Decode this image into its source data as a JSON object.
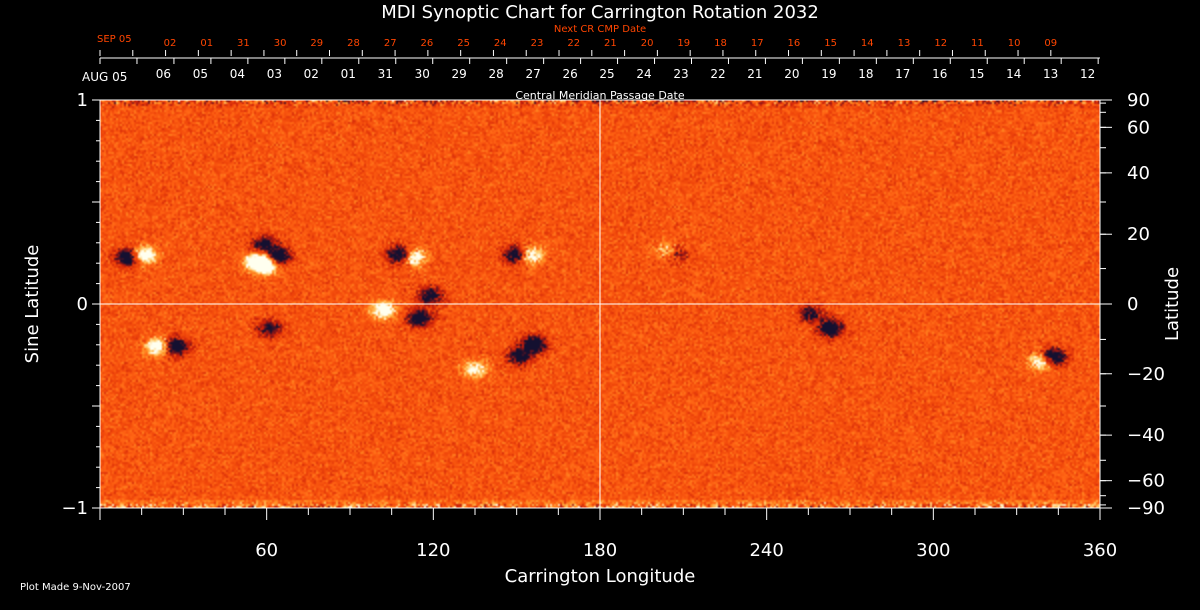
{
  "chart_data": {
    "type": "heatmap",
    "title": "MDI Synoptic Chart for Carrington Rotation 2032",
    "xlabel": "Carrington Longitude",
    "ylabel_left": "Sine Latitude",
    "ylabel_right": "Latitude",
    "xlim": [
      0,
      360
    ],
    "ylim": [
      -1,
      1
    ],
    "x_ticks": [
      60,
      120,
      180,
      240,
      300,
      360
    ],
    "x_tick_labels": [
      "60",
      "120",
      "180",
      "240",
      "300",
      "360"
    ],
    "y_ticks_left": [
      1,
      0,
      -1
    ],
    "y_tick_labels_left": [
      "1",
      "0",
      "−1"
    ],
    "y_ticks_right_deg": [
      90,
      60,
      40,
      20,
      0,
      -20,
      -40,
      -60,
      -90
    ],
    "y_tick_labels_right": [
      "90",
      "60",
      "40",
      "20",
      "0",
      "−20",
      "−40",
      "−60",
      "−90"
    ],
    "cmp_axis_label": "Central Meridian Passage Date",
    "cmp_start_label": "AUG 05",
    "cmp_dates": [
      "06",
      "05",
      "04",
      "03",
      "02",
      "01",
      "31",
      "30",
      "29",
      "28",
      "27",
      "26",
      "25",
      "24",
      "23",
      "22",
      "21",
      "20",
      "19",
      "18",
      "17",
      "16",
      "15",
      "14",
      "13",
      "12"
    ],
    "next_cr_label": "Next CR CMP Date",
    "next_cr_start_label": "SEP 05",
    "next_cr_dates": [
      "02",
      "01",
      "31",
      "30",
      "29",
      "28",
      "27",
      "26",
      "25",
      "24",
      "23",
      "22",
      "21",
      "20",
      "19",
      "18",
      "17",
      "16",
      "15",
      "14",
      "13",
      "12",
      "11",
      "10",
      "09"
    ],
    "grid": "crosshair at 180 longitude and 0 latitude",
    "colors": {
      "background_field": "#ff5a10",
      "positive": "#ffffff",
      "negative": "#141030",
      "axes": "#ffffff",
      "cr_labels": "#ff4500"
    },
    "regions": [
      {
        "lon": 10,
        "sinlat": 0.23,
        "polarity": "negative",
        "strength": 0.9
      },
      {
        "lon": 16,
        "sinlat": 0.24,
        "polarity": "positive",
        "strength": 0.9
      },
      {
        "lon": 57,
        "sinlat": 0.21,
        "polarity": "positive",
        "strength": 1.0
      },
      {
        "lon": 60,
        "sinlat": 0.19,
        "polarity": "positive",
        "strength": 1.0
      },
      {
        "lon": 64,
        "sinlat": 0.23,
        "polarity": "negative",
        "strength": 1.0
      },
      {
        "lon": 59,
        "sinlat": 0.29,
        "polarity": "negative",
        "strength": 0.7
      },
      {
        "lon": 108,
        "sinlat": 0.24,
        "polarity": "negative",
        "strength": 0.9
      },
      {
        "lon": 113,
        "sinlat": 0.23,
        "polarity": "positive",
        "strength": 0.8
      },
      {
        "lon": 102,
        "sinlat": -0.03,
        "polarity": "positive",
        "strength": 0.8
      },
      {
        "lon": 115,
        "sinlat": -0.07,
        "polarity": "negative",
        "strength": 0.8
      },
      {
        "lon": 119,
        "sinlat": 0.04,
        "polarity": "negative",
        "strength": 0.7
      },
      {
        "lon": 150,
        "sinlat": 0.24,
        "polarity": "negative",
        "strength": 0.9
      },
      {
        "lon": 155,
        "sinlat": 0.24,
        "polarity": "positive",
        "strength": 0.8
      },
      {
        "lon": 156,
        "sinlat": -0.2,
        "polarity": "negative",
        "strength": 0.9
      },
      {
        "lon": 151,
        "sinlat": -0.26,
        "polarity": "negative",
        "strength": 0.7
      },
      {
        "lon": 135,
        "sinlat": -0.32,
        "polarity": "positive",
        "strength": 0.6
      },
      {
        "lon": 21,
        "sinlat": -0.21,
        "polarity": "positive",
        "strength": 0.9
      },
      {
        "lon": 27,
        "sinlat": -0.21,
        "polarity": "negative",
        "strength": 1.0
      },
      {
        "lon": 61,
        "sinlat": -0.12,
        "polarity": "negative",
        "strength": 0.6
      },
      {
        "lon": 207,
        "sinlat": 0.25,
        "polarity": "negative",
        "strength": 0.6
      },
      {
        "lon": 205,
        "sinlat": 0.26,
        "polarity": "positive",
        "strength": 0.6
      },
      {
        "lon": 263,
        "sinlat": -0.12,
        "polarity": "negative",
        "strength": 0.9
      },
      {
        "lon": 256,
        "sinlat": -0.05,
        "polarity": "negative",
        "strength": 0.6
      },
      {
        "lon": 339,
        "sinlat": -0.28,
        "polarity": "positive",
        "strength": 0.8
      },
      {
        "lon": 343,
        "sinlat": -0.26,
        "polarity": "negative",
        "strength": 1.0
      }
    ]
  },
  "footer": {
    "plot_made": "Plot Made  9-Nov-2007"
  }
}
